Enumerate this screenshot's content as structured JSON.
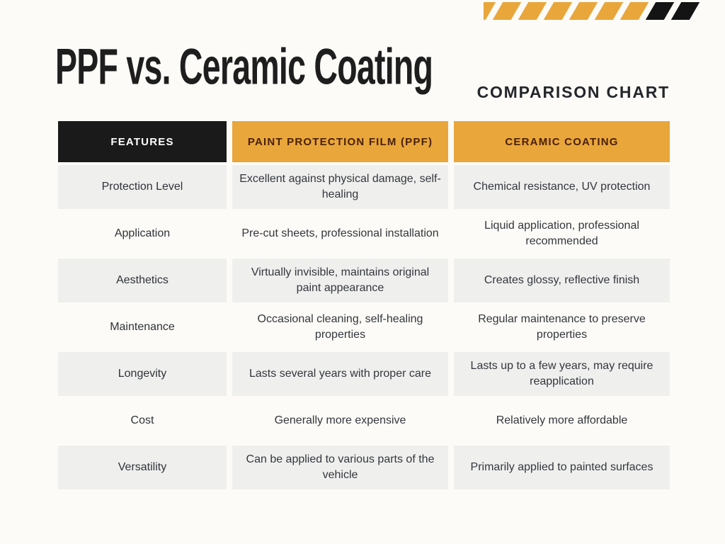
{
  "page": {
    "title": "PPF vs. Ceramic Coating",
    "subtitle": "COMPARISON CHART"
  },
  "colors": {
    "page_background": "#FCFBF7",
    "accent_yellow": "#E9A63B",
    "header_black": "#1A1A1A",
    "header_text_on_yellow": "#4A2008",
    "shaded_row_gray": "#EFEFEE",
    "body_text": "#33373C",
    "title_text": "#1E1E1E"
  },
  "decor": {
    "stripe_colors": [
      "#E9A63B",
      "#E9A63B",
      "#E9A63B",
      "#E9A63B",
      "#E9A63B",
      "#E9A63B",
      "#E9A63B",
      "#141414",
      "#141414"
    ]
  },
  "chart_data": {
    "type": "table",
    "title": "PPF vs. Ceramic Coating",
    "subtitle": "COMPARISON CHART",
    "columns": [
      "FEATURES",
      "PAINT PROTECTION FILM (PPF)",
      "CERAMIC COATING"
    ],
    "rows": [
      {
        "feature": "Protection Level",
        "ppf": "Excellent against physical damage, self-healing",
        "ceramic": "Chemical resistance, UV protection"
      },
      {
        "feature": "Application",
        "ppf": "Pre-cut sheets, professional installation",
        "ceramic": "Liquid application, professional recommended"
      },
      {
        "feature": "Aesthetics",
        "ppf": "Virtually invisible, maintains original paint appearance",
        "ceramic": "Creates glossy, reflective finish"
      },
      {
        "feature": "Maintenance",
        "ppf": "Occasional cleaning, self-healing properties",
        "ceramic": "Regular maintenance to preserve properties"
      },
      {
        "feature": "Longevity",
        "ppf": "Lasts several years with proper care",
        "ceramic": "Lasts up to a few years, may require reapplication"
      },
      {
        "feature": "Cost",
        "ppf": "Generally more expensive",
        "ceramic": "Relatively more affordable"
      },
      {
        "feature": "Versatility",
        "ppf": "Can be applied to various parts of the vehicle",
        "ceramic": "Primarily applied to painted surfaces"
      }
    ]
  }
}
